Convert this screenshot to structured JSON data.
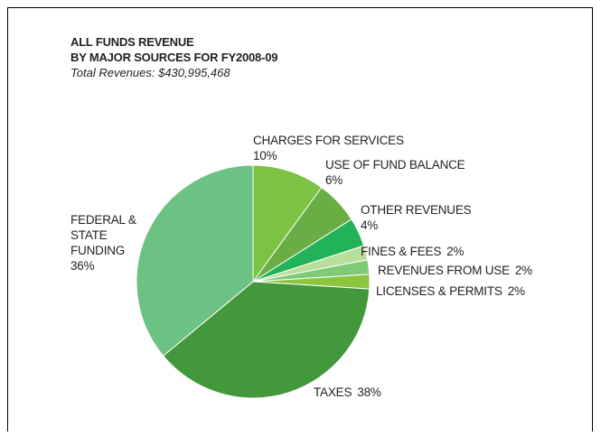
{
  "chart_data": {
    "type": "pie",
    "title": [
      "ALL FUNDS REVENUE",
      "BY MAJOR SOURCES FOR FY2008-09"
    ],
    "subtitle": "Total Revenues: $430,995,468",
    "categories": [
      "CHARGES FOR SERVICES",
      "USE OF FUND BALANCE",
      "OTHER REVENUES",
      "FINES & FEES",
      "REVENUES FROM USE",
      "LICENSES & PERMITS",
      "TAXES",
      "FEDERAL & STATE FUNDING"
    ],
    "values": [
      10,
      6,
      4,
      2,
      2,
      2,
      38,
      36
    ],
    "value_labels": [
      "10%",
      "6%",
      "4%",
      "2%",
      "2%",
      "2%",
      "38%",
      "36%"
    ],
    "colors": [
      "#7dc242",
      "#6aad45",
      "#22b25a",
      "#b8de9c",
      "#7fca78",
      "#8cc63f",
      "#43983c",
      "#6cc282"
    ]
  }
}
